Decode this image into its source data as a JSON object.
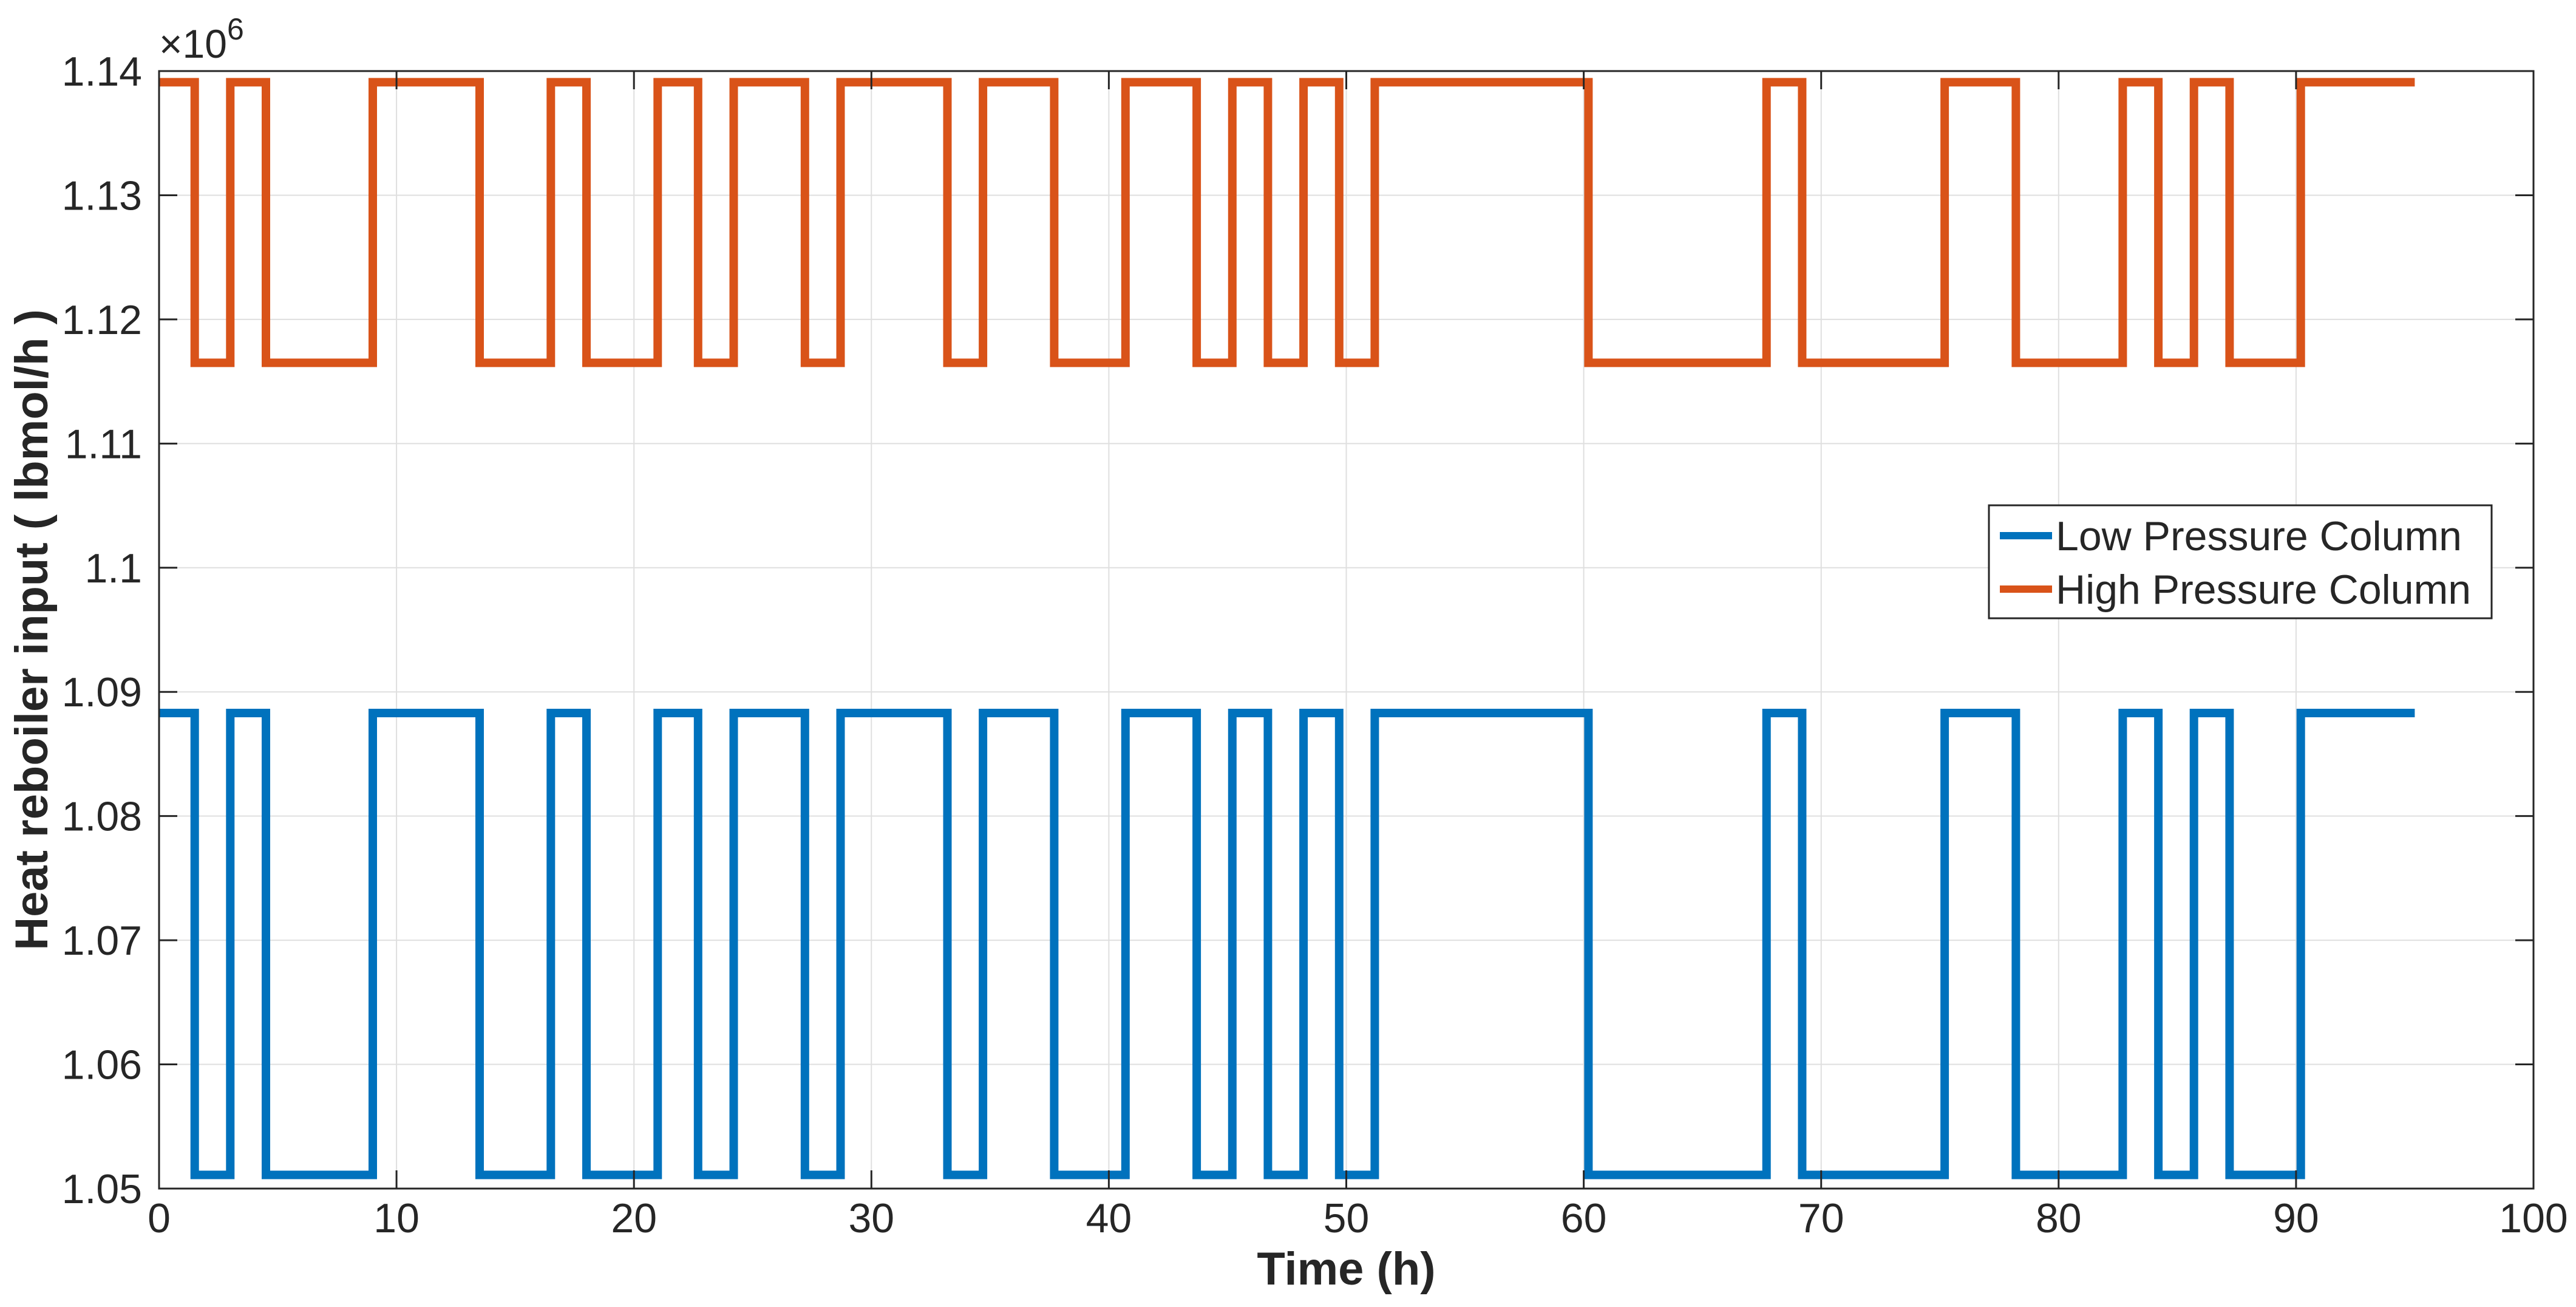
{
  "chart_data": {
    "type": "line",
    "xlabel": "Time (h)",
    "ylabel": "Heat reboiler input ( lbmol/h )",
    "y_multiplier": "×10",
    "y_exponent": "6",
    "xlim": [
      0,
      100
    ],
    "ylim": [
      1.05,
      1.14
    ],
    "x_ticks": [
      "0",
      "10",
      "20",
      "30",
      "40",
      "50",
      "60",
      "70",
      "80",
      "90",
      "100"
    ],
    "y_ticks": [
      "1.05",
      "1.06",
      "1.07",
      "1.08",
      "1.09",
      "1.1",
      "1.11",
      "1.12",
      "1.13",
      "1.14"
    ],
    "grid": true,
    "legend_position": "right",
    "series": [
      {
        "name": "Low Pressure Column",
        "color": "#0072BD",
        "levels": {
          "high": 1.0883,
          "low": 1.0511
        },
        "x": [
          0,
          1.5,
          1.5,
          3,
          3,
          4.5,
          4.5,
          9,
          9,
          13.5,
          13.5,
          16.5,
          16.5,
          18,
          18,
          21,
          21,
          22.7,
          22.7,
          24.2,
          24.2,
          27.2,
          27.2,
          28.7,
          28.7,
          33.2,
          33.2,
          34.7,
          34.7,
          37.7,
          37.7,
          40.7,
          40.7,
          43.7,
          43.7,
          45.2,
          45.2,
          46.7,
          46.7,
          48.2,
          48.2,
          49.7,
          49.7,
          51.2,
          51.2,
          60.2,
          60.2,
          67.7,
          67.7,
          69.2,
          69.2,
          75.2,
          75.2,
          78.2,
          78.2,
          82.7,
          82.7,
          84.2,
          84.2,
          85.7,
          85.7,
          87.2,
          87.2,
          90.2,
          90.2,
          95
        ],
        "y": [
          1.0883,
          1.0883,
          1.0511,
          1.0511,
          1.0883,
          1.0883,
          1.0511,
          1.0511,
          1.0883,
          1.0883,
          1.0511,
          1.0511,
          1.0883,
          1.0883,
          1.0511,
          1.0511,
          1.0883,
          1.0883,
          1.0511,
          1.0511,
          1.0883,
          1.0883,
          1.0511,
          1.0511,
          1.0883,
          1.0883,
          1.0511,
          1.0511,
          1.0883,
          1.0883,
          1.0511,
          1.0511,
          1.0883,
          1.0883,
          1.0511,
          1.0511,
          1.0883,
          1.0883,
          1.0511,
          1.0511,
          1.0883,
          1.0883,
          1.0511,
          1.0511,
          1.0883,
          1.0883,
          1.0511,
          1.0511,
          1.0883,
          1.0883,
          1.0511,
          1.0511,
          1.0883,
          1.0883,
          1.0511,
          1.0511,
          1.0883,
          1.0883,
          1.0511,
          1.0511,
          1.0883,
          1.0883,
          1.0511,
          1.0511,
          1.0883,
          1.0883
        ]
      },
      {
        "name": "High Pressure Column",
        "color": "#D95319",
        "levels": {
          "high": 1.1391,
          "low": 1.1165
        },
        "x": [
          0,
          1.5,
          1.5,
          3,
          3,
          4.5,
          4.5,
          9,
          9,
          13.5,
          13.5,
          16.5,
          16.5,
          18,
          18,
          21,
          21,
          22.7,
          22.7,
          24.2,
          24.2,
          27.2,
          27.2,
          28.7,
          28.7,
          33.2,
          33.2,
          34.7,
          34.7,
          37.7,
          37.7,
          40.7,
          40.7,
          43.7,
          43.7,
          45.2,
          45.2,
          46.7,
          46.7,
          48.2,
          48.2,
          49.7,
          49.7,
          51.2,
          51.2,
          60.2,
          60.2,
          67.7,
          67.7,
          69.2,
          69.2,
          75.2,
          75.2,
          78.2,
          78.2,
          82.7,
          82.7,
          84.2,
          84.2,
          85.7,
          85.7,
          87.2,
          87.2,
          90.2,
          90.2,
          95
        ],
        "y": [
          1.1391,
          1.1391,
          1.1165,
          1.1165,
          1.1391,
          1.1391,
          1.1165,
          1.1165,
          1.1391,
          1.1391,
          1.1165,
          1.1165,
          1.1391,
          1.1391,
          1.1165,
          1.1165,
          1.1391,
          1.1391,
          1.1165,
          1.1165,
          1.1391,
          1.1391,
          1.1165,
          1.1165,
          1.1391,
          1.1391,
          1.1165,
          1.1165,
          1.1391,
          1.1391,
          1.1165,
          1.1165,
          1.1391,
          1.1391,
          1.1165,
          1.1165,
          1.1391,
          1.1391,
          1.1165,
          1.1165,
          1.1391,
          1.1391,
          1.1165,
          1.1165,
          1.1391,
          1.1391,
          1.1165,
          1.1165,
          1.1391,
          1.1391,
          1.1165,
          1.1165,
          1.1391,
          1.1391,
          1.1165,
          1.1165,
          1.1391,
          1.1391,
          1.1165,
          1.1165,
          1.1391,
          1.1391,
          1.1165,
          1.1165,
          1.1391,
          1.1391
        ]
      }
    ]
  }
}
